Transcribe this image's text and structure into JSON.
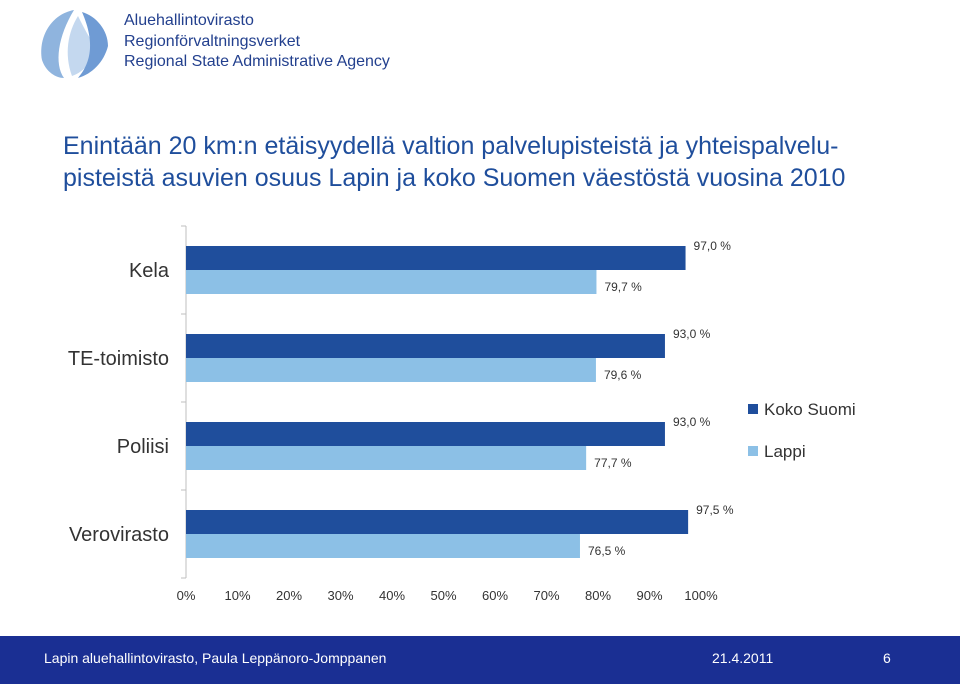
{
  "header": {
    "org_lines": [
      "Aluehallintovirasto",
      "Regionförvaltningsverket",
      "Regional State Administrative Agency"
    ],
    "logo_icon": "regional-state-agency-logo-icon"
  },
  "colors": {
    "koko_suomi": "#1f4e9c",
    "lappi": "#8cc0e6",
    "title": "#1f4e9c",
    "footer": "#1a2f93"
  },
  "chart_data": {
    "type": "bar",
    "orientation": "horizontal",
    "title": "Enintään 20 km:n etäisyydellä valtion palvelupisteistä ja yhteispalvelu-pisteistä asuvien osuus Lapin ja koko Suomen väestöstä vuosina 2010",
    "title_lines": [
      "Enintään 20 km:n etäisyydellä valtion palvelupisteistä ja yhteispalvelu-",
      "pisteistä asuvien osuus Lapin ja koko Suomen väestöstä vuosina 2010"
    ],
    "categories": [
      "Kela",
      "TE-toimisto",
      "Poliisi",
      "Verovirasto"
    ],
    "series": [
      {
        "name": "Koko Suomi",
        "values": [
          97.0,
          93.0,
          93.0,
          97.5
        ],
        "labels": [
          "97,0 %",
          "93,0 %",
          "93,0 %",
          "97,5 %"
        ]
      },
      {
        "name": "Lappi",
        "values": [
          79.7,
          79.6,
          77.7,
          76.5
        ],
        "labels": [
          "79,7 %",
          "79,6 %",
          "77,7 %",
          "76,5 %"
        ]
      }
    ],
    "xlim": [
      0,
      100
    ],
    "x_ticks": [
      "0%",
      "10%",
      "20%",
      "30%",
      "40%",
      "50%",
      "60%",
      "70%",
      "80%",
      "90%",
      "100%"
    ],
    "legend_position": "right",
    "grid": false
  },
  "footer": {
    "author": "Lapin aluehallintovirasto, Paula Leppänoro-Jomppanen",
    "date": "21.4.2011",
    "page": "6"
  }
}
